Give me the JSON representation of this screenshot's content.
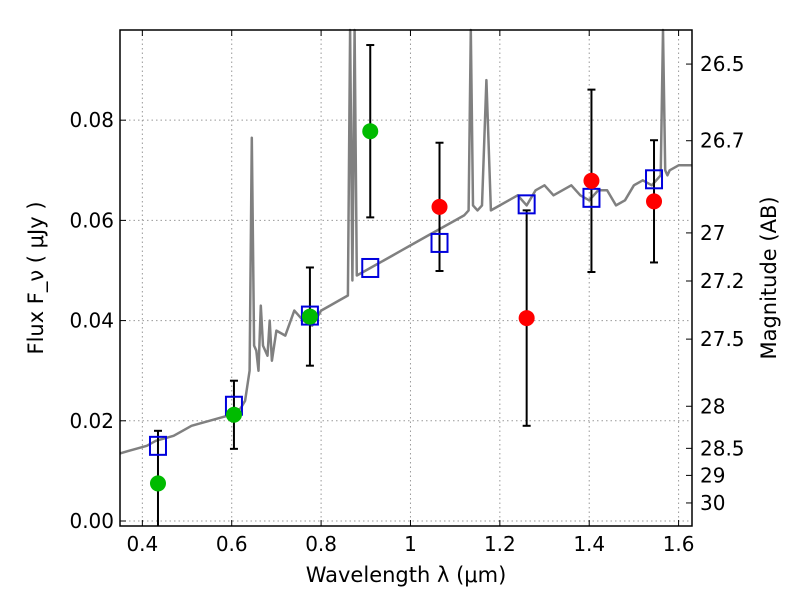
{
  "chart_data": {
    "type": "scatter",
    "xlabel": "Wavelength  λ (μm)",
    "ylabel": "Flux  F_ν  ( μJy )",
    "ylabel_right": "Magnitude (AB)",
    "xlim": [
      0.35,
      1.63
    ],
    "ylim": [
      -0.001,
      0.098
    ],
    "grid": true,
    "x_ticks": [
      0.4,
      0.6,
      0.8,
      1.0,
      1.2,
      1.4,
      1.6
    ],
    "x_tick_labels": [
      "0.4",
      "0.6",
      "0.8",
      "1",
      "1.2",
      "1.4",
      "1.6"
    ],
    "y_ticks": [
      0.0,
      0.02,
      0.04,
      0.06,
      0.08
    ],
    "y_tick_labels": [
      "0.00",
      "0.02",
      "0.04",
      "0.06",
      "0.08"
    ],
    "mag_ticks": [
      {
        "label": "26.5",
        "flux": 0.0912
      },
      {
        "label": "26.7",
        "flux": 0.0759
      },
      {
        "label": "27",
        "flux": 0.0575
      },
      {
        "label": "27.2",
        "flux": 0.0479
      },
      {
        "label": "27.5",
        "flux": 0.0363
      },
      {
        "label": "28",
        "flux": 0.0229
      },
      {
        "label": "28.5",
        "flux": 0.0145
      },
      {
        "label": "29",
        "flux": 0.0091
      },
      {
        "label": "30",
        "flux": 0.0036
      }
    ],
    "colors": {
      "model": "#808080",
      "model_boxes": "#0000dd",
      "green": "#00bb00",
      "red": "#ff0000",
      "errorbar": "#000000",
      "grid": "#999999"
    },
    "series": [
      {
        "marker": "line",
        "x": [
          0.35,
          0.37,
          0.39,
          0.41,
          0.43,
          0.45,
          0.47,
          0.49,
          0.51,
          0.53,
          0.55,
          0.57,
          0.59,
          0.61,
          0.62,
          0.63,
          0.64,
          0.645,
          0.65,
          0.655,
          0.66,
          0.665,
          0.67,
          0.68,
          0.685,
          0.69,
          0.7,
          0.72,
          0.74,
          0.76,
          0.78,
          0.8,
          0.82,
          0.84,
          0.86,
          0.865,
          0.87,
          0.875,
          0.88,
          0.9,
          0.92,
          0.94,
          0.96,
          0.98,
          1.0,
          1.02,
          1.04,
          1.06,
          1.08,
          1.1,
          1.12,
          1.13,
          1.135,
          1.14,
          1.15,
          1.16,
          1.17,
          1.18,
          1.2,
          1.22,
          1.24,
          1.26,
          1.28,
          1.3,
          1.32,
          1.34,
          1.36,
          1.38,
          1.4,
          1.42,
          1.44,
          1.46,
          1.48,
          1.5,
          1.52,
          1.54,
          1.56,
          1.565,
          1.57,
          1.575,
          1.58,
          1.6,
          1.63
        ],
        "y": [
          0.0135,
          0.014,
          0.0145,
          0.015,
          0.016,
          0.0165,
          0.017,
          0.018,
          0.019,
          0.0195,
          0.02,
          0.0205,
          0.021,
          0.022,
          0.0225,
          0.024,
          0.03,
          0.0765,
          0.035,
          0.034,
          0.03,
          0.043,
          0.035,
          0.033,
          0.04,
          0.032,
          0.038,
          0.037,
          0.042,
          0.04,
          0.039,
          0.042,
          0.043,
          0.044,
          0.045,
          0.098,
          0.048,
          0.098,
          0.049,
          0.05,
          0.051,
          0.052,
          0.053,
          0.054,
          0.055,
          0.056,
          0.057,
          0.058,
          0.059,
          0.06,
          0.061,
          0.062,
          0.098,
          0.063,
          0.062,
          0.063,
          0.088,
          0.062,
          0.063,
          0.064,
          0.065,
          0.063,
          0.066,
          0.067,
          0.065,
          0.066,
          0.067,
          0.065,
          0.064,
          0.066,
          0.066,
          0.063,
          0.064,
          0.067,
          0.068,
          0.067,
          0.069,
          0.098,
          0.07,
          0.069,
          0.07,
          0.071,
          0.071
        ]
      },
      {
        "marker": "open-square",
        "x": [
          0.435,
          0.605,
          0.775,
          0.91,
          1.065,
          1.26,
          1.405,
          1.545
        ],
        "y": [
          0.015,
          0.023,
          0.041,
          0.0505,
          0.0555,
          0.0632,
          0.0645,
          0.0682
        ]
      },
      {
        "marker": "circle-green",
        "x": [
          0.435,
          0.605,
          0.775,
          0.91
        ],
        "y": [
          0.0075,
          0.0212,
          0.0408,
          0.0778
        ],
        "err": [
          0.0105,
          0.0068,
          0.0098,
          0.0172
        ]
      },
      {
        "marker": "circle-red",
        "x": [
          1.065,
          1.26,
          1.405,
          1.545
        ],
        "y": [
          0.0627,
          0.0405,
          0.0679,
          0.0638
        ],
        "err": [
          0.0128,
          0.0215,
          0.0182,
          0.0122
        ]
      }
    ]
  }
}
